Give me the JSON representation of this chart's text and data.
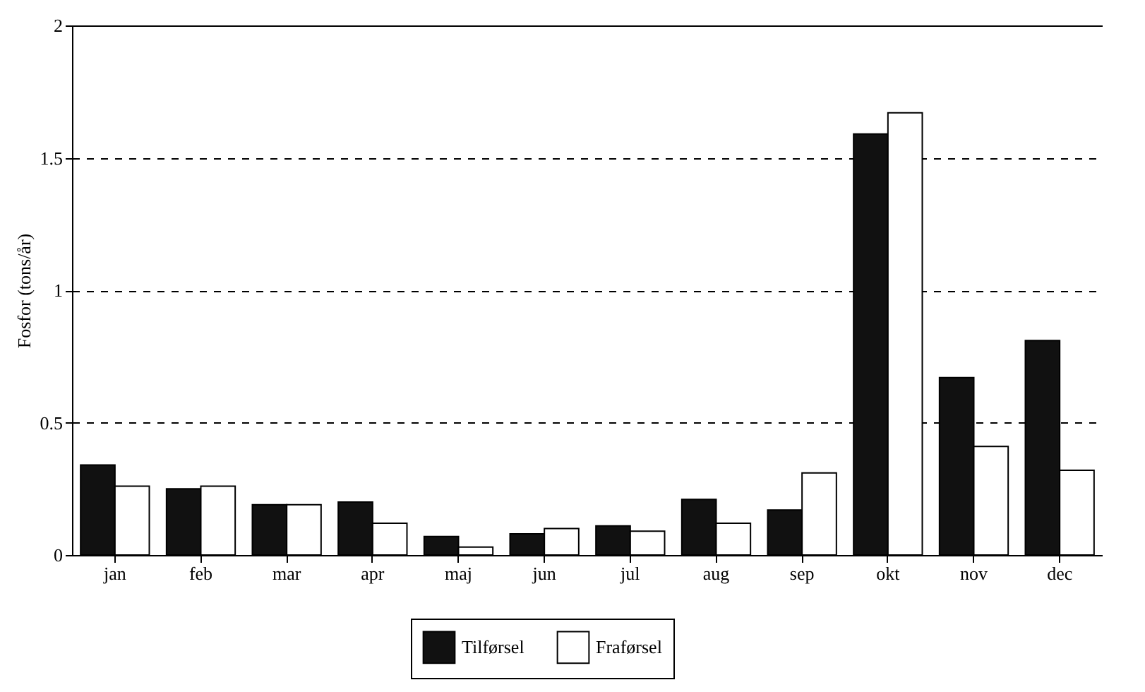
{
  "chart_data": {
    "type": "bar",
    "ylabel": "Fosfor (tons/år)",
    "categories": [
      "jan",
      "feb",
      "mar",
      "apr",
      "maj",
      "jun",
      "jul",
      "aug",
      "sep",
      "okt",
      "nov",
      "dec"
    ],
    "series": [
      {
        "name": "Tilførsel",
        "color": "#111111",
        "values": [
          0.34,
          0.25,
          0.19,
          0.2,
          0.07,
          0.08,
          0.11,
          0.21,
          0.17,
          1.59,
          0.67,
          0.81
        ]
      },
      {
        "name": "Fraførsel",
        "color": "#ffffff",
        "values": [
          0.26,
          0.26,
          0.19,
          0.12,
          0.03,
          0.1,
          0.09,
          0.12,
          0.31,
          1.67,
          0.41,
          0.32
        ]
      }
    ],
    "ylim": [
      0,
      2
    ],
    "yticks": [
      0,
      0.5,
      1,
      1.5,
      2
    ],
    "grid": "y",
    "legend": "bottom"
  }
}
